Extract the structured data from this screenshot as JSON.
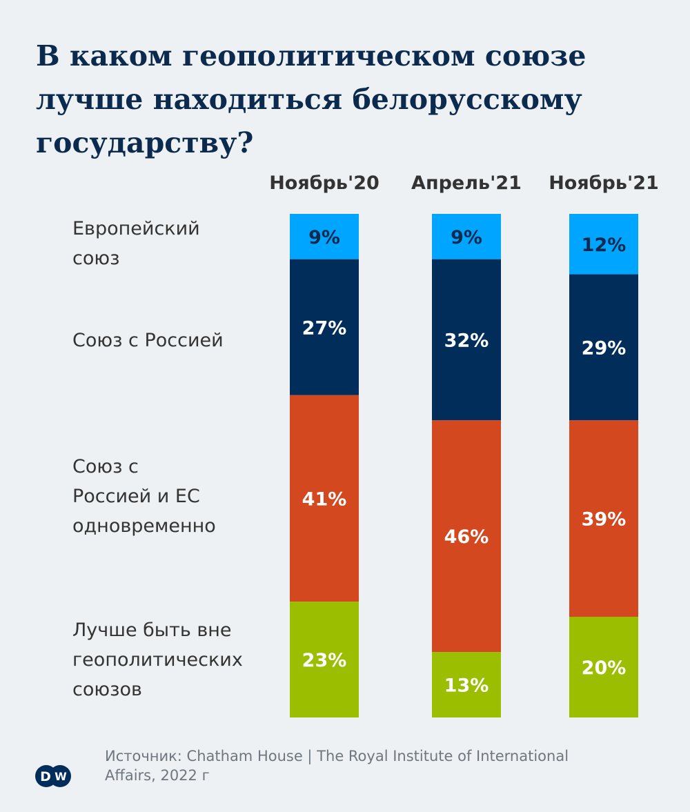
{
  "chart_data": {
    "type": "bar",
    "stacked": true,
    "orientation": "vertical",
    "title": "В каком геополитическом союзе лучше находиться белорусскому государству?",
    "categories": [
      "Ноябрь'20",
      "Апрель'21",
      "Ноябрь'21"
    ],
    "series": [
      {
        "name": "Европейский союз",
        "values": [
          9,
          9,
          12
        ],
        "color": "#00a5ff",
        "label_color": "#0b2a4e"
      },
      {
        "name": "Союз с Россией",
        "values": [
          27,
          32,
          29
        ],
        "color": "#002d5a",
        "label_color": "#ffffff"
      },
      {
        "name": "Союз с Россией и ЕС одновременно",
        "values": [
          41,
          46,
          39
        ],
        "color": "#d44820",
        "label_color": "#ffffff"
      },
      {
        "name": "Лучше быть вне геополитических союзов",
        "values": [
          23,
          13,
          20
        ],
        "color": "#9bbf00",
        "label_color": "#ffffff"
      }
    ],
    "value_suffix": "%",
    "ylim": [
      0,
      100
    ],
    "grid": false,
    "legend": "left"
  },
  "labels": {
    "eu": [
      "Европейский",
      "союз"
    ],
    "russia": [
      "Союз с Россией"
    ],
    "both": [
      "Союз с",
      "Россией и ЕС",
      "одновременно"
    ],
    "none": [
      "Лучше быть вне",
      "геополитических",
      "союзов"
    ]
  },
  "source": {
    "line1": "Источник: Chatham House | The Royal Institute of International",
    "line2": "Affairs, 2022 г"
  },
  "logo": {
    "text": "DW",
    "color": "#002d5a"
  }
}
